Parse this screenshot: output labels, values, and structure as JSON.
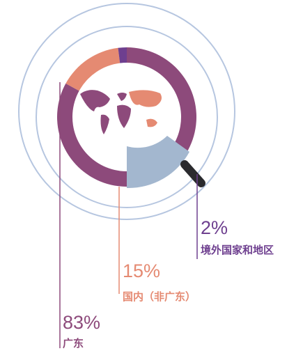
{
  "chart_data": {
    "type": "donut",
    "categories": [
      "广东",
      "国内（非广东）",
      "境外国家和地区"
    ],
    "values": [
      83,
      15,
      2
    ],
    "value_labels": [
      "83%",
      "15%",
      "2%"
    ],
    "colors": [
      "#8d4a7b",
      "#e58a72",
      "#6e3f8f"
    ]
  }
}
